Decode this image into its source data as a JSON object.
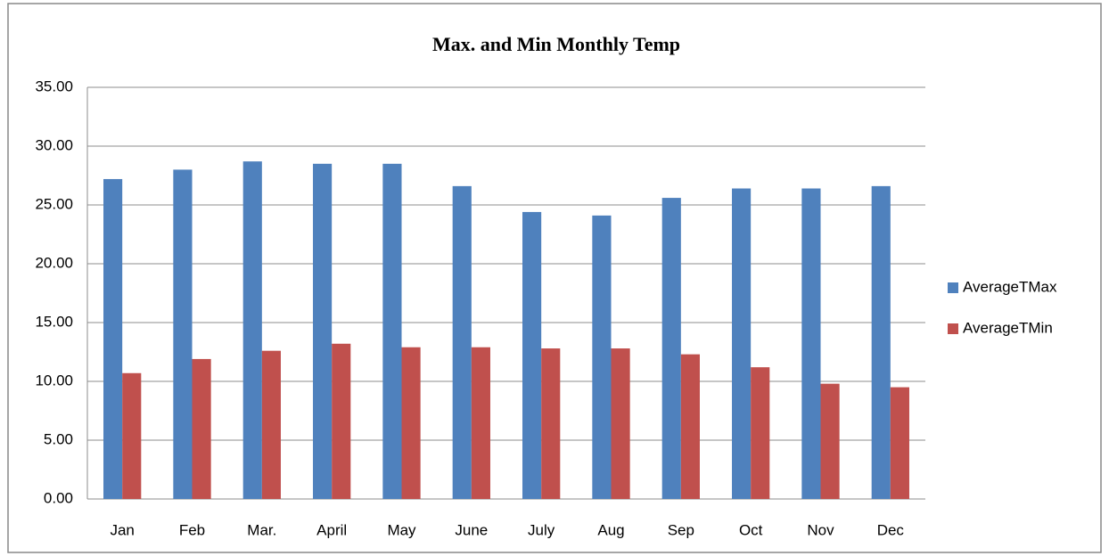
{
  "chart_data": {
    "type": "bar",
    "title": "Max. and Min Monthly Temp",
    "categories": [
      "Jan",
      "Feb",
      "Mar.",
      "April",
      "May",
      "June",
      "July",
      "Aug",
      "Sep",
      "Oct",
      "Nov",
      "Dec"
    ],
    "series": [
      {
        "name": "AverageTMax",
        "color": "#4f81bd",
        "values": [
          27.2,
          28.0,
          28.7,
          28.5,
          28.5,
          26.6,
          24.4,
          24.1,
          25.6,
          26.4,
          26.4,
          26.6
        ]
      },
      {
        "name": "AverageTMin",
        "color": "#c0504d",
        "values": [
          10.7,
          11.9,
          12.6,
          13.2,
          12.9,
          12.9,
          12.8,
          12.8,
          12.3,
          11.2,
          9.8,
          9.5
        ]
      }
    ],
    "ylim": [
      0,
      35
    ],
    "yticks": [
      {
        "value": 0,
        "label": "0.00"
      },
      {
        "value": 5,
        "label": "5.00"
      },
      {
        "value": 10,
        "label": "10.00"
      },
      {
        "value": 15,
        "label": "15.00"
      },
      {
        "value": 20,
        "label": "20.00"
      },
      {
        "value": 25,
        "label": "25.00"
      },
      {
        "value": 30,
        "label": "30.00"
      },
      {
        "value": 35,
        "label": "35.00"
      }
    ],
    "grid": true,
    "legend": "right"
  }
}
